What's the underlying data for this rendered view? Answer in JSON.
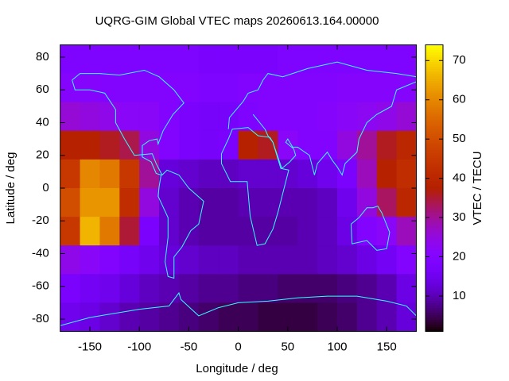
{
  "chart_data": {
    "type": "heatmap",
    "title": "UQRG-GIM Global VTEC maps 20260613.164.00000",
    "x_label": "Longitude / deg",
    "y_label": "Latitude / deg",
    "colorbar_label": "VTEC / TECU",
    "x": [
      -170,
      -150,
      -130,
      -110,
      -90,
      -70,
      -50,
      -30,
      -10,
      10,
      30,
      50,
      70,
      90,
      110,
      130,
      150,
      170
    ],
    "y": [
      78.75,
      61.25,
      43.75,
      26.25,
      8.75,
      -8.75,
      -26.25,
      -43.75,
      -61.25,
      -78.75
    ],
    "z": [
      [
        19,
        19,
        19,
        19,
        19,
        19,
        19,
        18,
        18,
        18,
        18,
        19,
        19,
        19,
        19,
        19,
        19,
        19
      ],
      [
        21,
        21,
        20,
        20,
        20,
        20,
        20,
        19,
        19,
        20,
        20,
        20,
        20,
        20,
        21,
        21,
        21,
        21
      ],
      [
        26,
        25,
        24,
        22,
        22,
        20,
        18,
        17,
        17,
        19,
        20,
        20,
        20,
        21,
        22,
        23,
        24,
        26
      ],
      [
        38,
        38,
        36,
        34,
        25,
        20,
        18,
        17,
        18,
        38,
        36,
        22,
        20,
        20,
        25,
        30,
        36,
        40
      ],
      [
        45,
        60,
        58,
        45,
        30,
        13,
        12,
        11,
        11,
        12,
        12,
        12,
        13,
        15,
        18,
        28,
        38,
        42
      ],
      [
        50,
        62,
        62,
        42,
        25,
        12,
        10,
        9,
        9,
        10,
        10,
        10,
        10,
        11,
        15,
        25,
        33,
        40
      ],
      [
        45,
        66,
        58,
        35,
        18,
        12,
        10,
        9,
        9,
        9,
        9,
        9,
        10,
        11,
        14,
        20,
        22,
        28
      ],
      [
        24,
        22,
        20,
        17,
        15,
        13,
        12,
        11,
        11,
        10,
        10,
        10,
        10,
        11,
        12,
        14,
        16,
        20
      ],
      [
        18,
        16,
        15,
        13,
        11,
        10,
        9,
        8,
        8,
        7,
        7,
        6,
        6,
        6,
        7,
        8,
        10,
        14
      ],
      [
        15,
        14,
        12,
        10,
        9,
        8,
        7,
        6,
        5,
        5,
        4,
        4,
        4,
        5,
        6,
        8,
        10,
        13
      ]
    ],
    "xlim": [
      -180,
      180
    ],
    "ylim": [
      -87.5,
      87.5
    ],
    "zlim": [
      1,
      74
    ],
    "xticks": [
      -150,
      -100,
      -50,
      0,
      50,
      100,
      150
    ],
    "yticks": [
      -80,
      -60,
      -40,
      -20,
      0,
      20,
      40,
      60,
      80
    ],
    "zticks": [
      10,
      20,
      30,
      40,
      50,
      60,
      70
    ]
  }
}
